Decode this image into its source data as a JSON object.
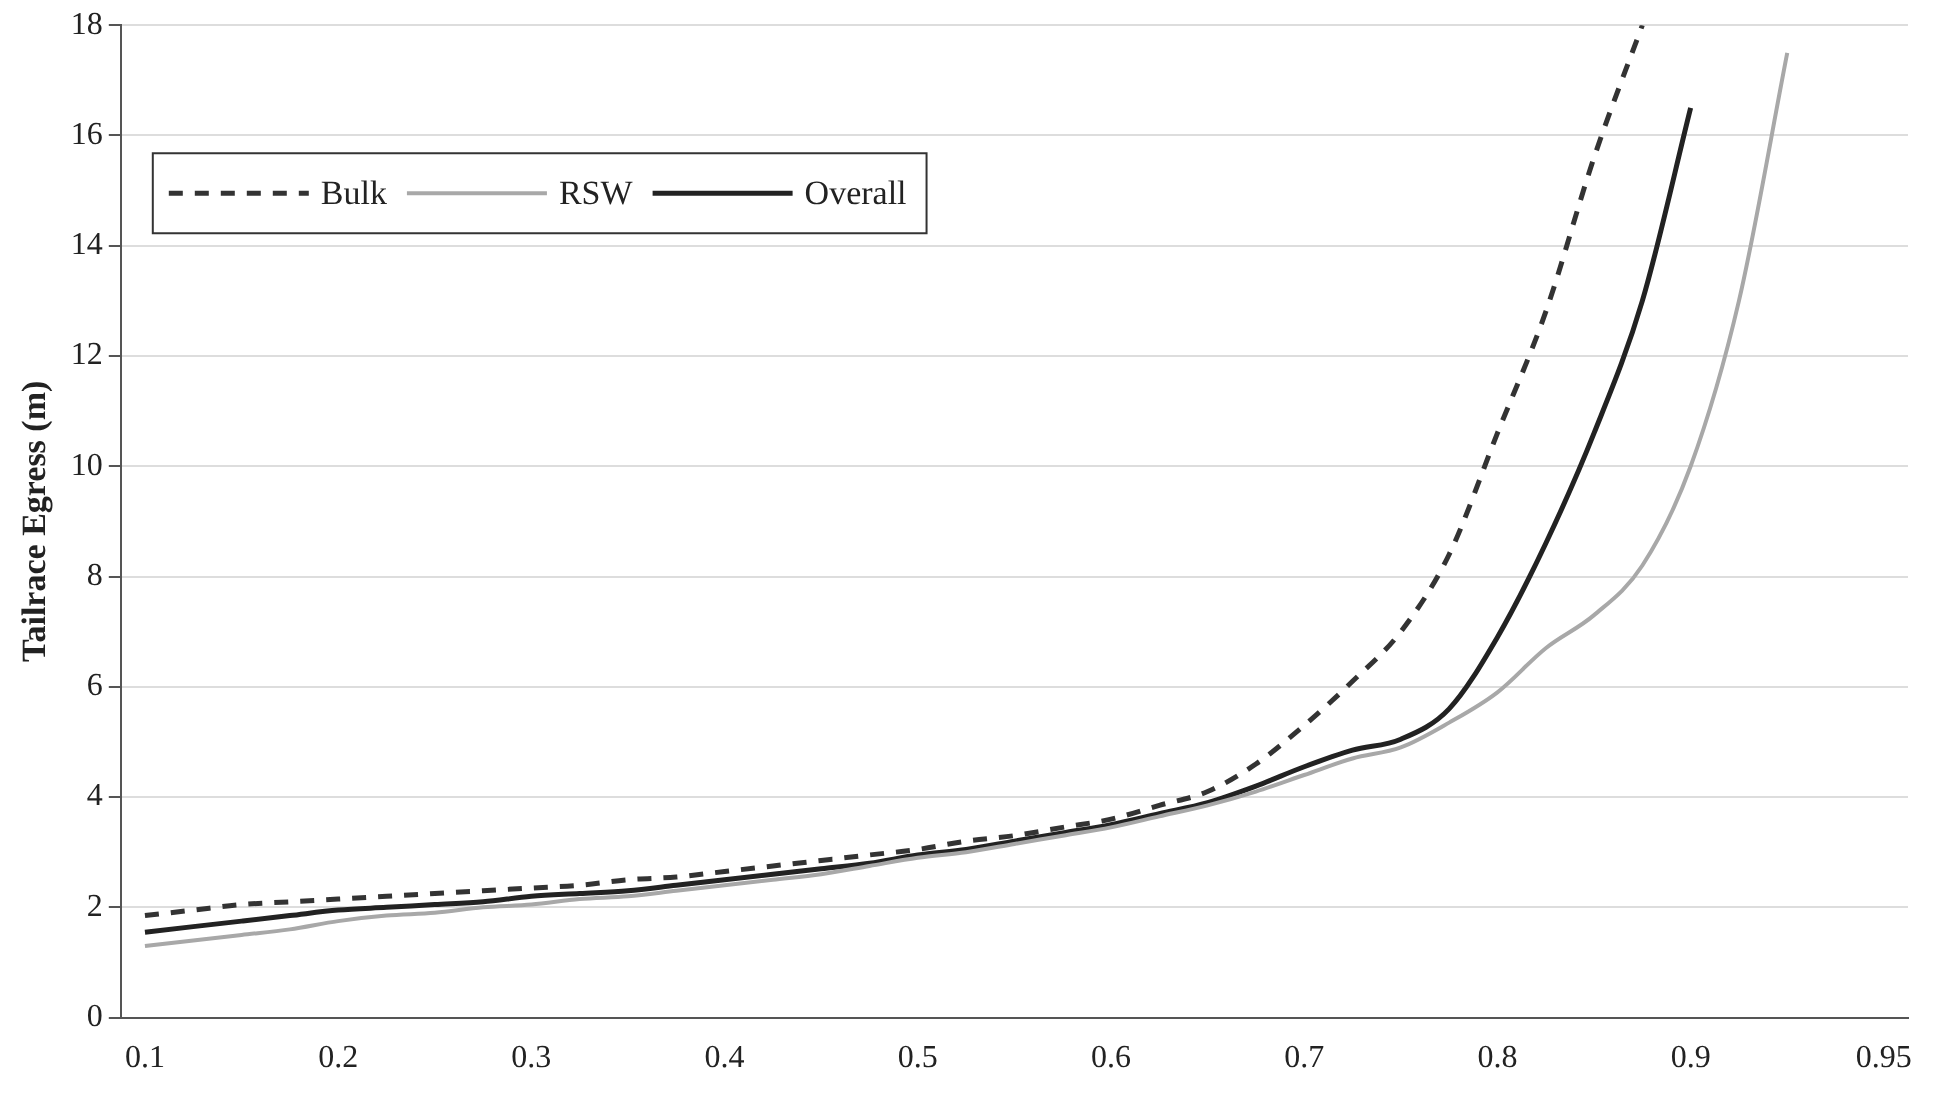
{
  "chart_data": {
    "type": "line",
    "ylabel": "Tailrace Egress (m)",
    "categories": [
      "0.1",
      null,
      null,
      null,
      "0.2",
      null,
      null,
      null,
      "0.3",
      null,
      null,
      null,
      "0.4",
      null,
      null,
      null,
      "0.5",
      null,
      null,
      null,
      "0.6",
      null,
      null,
      null,
      "0.7",
      null,
      null,
      null,
      "0.8",
      null,
      null,
      null,
      "0.9",
      null,
      null,
      null,
      "0.95"
    ],
    "series": [
      {
        "name": "Bulk",
        "color": "#333333",
        "line_style": "dashed",
        "values": [
          1.85,
          1.95,
          2.05,
          2.1,
          2.15,
          2.2,
          2.25,
          2.3,
          2.35,
          2.4,
          2.5,
          2.55,
          2.65,
          2.75,
          2.85,
          2.95,
          3.05,
          3.2,
          3.3,
          3.45,
          3.6,
          3.85,
          4.1,
          4.6,
          5.3,
          6.1,
          7.0,
          8.4,
          10.6,
          12.8,
          15.6,
          18,
          null,
          null,
          null,
          null,
          null
        ]
      },
      {
        "name": "RSW",
        "color": "#a8a8a8",
        "line_style": "solid",
        "values": [
          1.3,
          1.4,
          1.5,
          1.6,
          1.75,
          1.85,
          1.9,
          2.0,
          2.05,
          2.15,
          2.2,
          2.3,
          2.4,
          2.5,
          2.6,
          2.75,
          2.9,
          3.0,
          3.15,
          3.3,
          3.45,
          3.65,
          3.85,
          4.1,
          4.4,
          4.7,
          4.9,
          5.35,
          5.9,
          6.7,
          7.3,
          8.2,
          10.0,
          13.0,
          17.5,
          null,
          null
        ]
      },
      {
        "name": "Overall",
        "color": "#222222",
        "line_style": "solid",
        "values": [
          1.55,
          1.65,
          1.75,
          1.85,
          1.95,
          2.0,
          2.05,
          2.1,
          2.2,
          2.25,
          2.3,
          2.4,
          2.5,
          2.6,
          2.7,
          2.8,
          2.95,
          3.05,
          3.2,
          3.35,
          3.5,
          3.7,
          3.9,
          4.2,
          4.55,
          4.85,
          5.05,
          5.6,
          6.9,
          8.6,
          10.6,
          13.0,
          16.5,
          null,
          null,
          null,
          null
        ]
      }
    ],
    "ylim": [
      0,
      18
    ],
    "yticks": [
      0,
      2,
      4,
      6,
      8,
      10,
      12,
      14,
      16,
      18
    ],
    "grid": "y",
    "legend": "top left",
    "marker": "none"
  }
}
